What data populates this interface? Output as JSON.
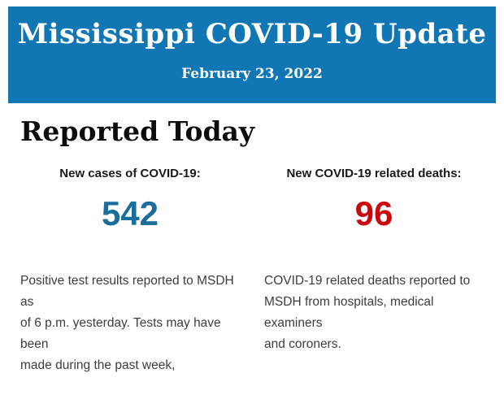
{
  "header": {
    "title": "Mississippi COVID-19 Update",
    "date": "February 23, 2022",
    "background_color": "#1076B4",
    "text_color": "#FFFFFF"
  },
  "section": {
    "title": "Reported Today"
  },
  "stats": [
    {
      "label": "New cases of COVID-19:",
      "value": "542",
      "value_color": "#1B6E9B",
      "description": "Positive test results reported to MSDH as\nof 6 p.m. yesterday. Tests may have been\nmade during the past week,"
    },
    {
      "label": "New COVID-19 related deaths:",
      "value": "96",
      "value_color": "#C9090D",
      "description": "COVID-19 related deaths reported to\nMSDH from hospitals, medical examiners\nand coroners."
    }
  ]
}
